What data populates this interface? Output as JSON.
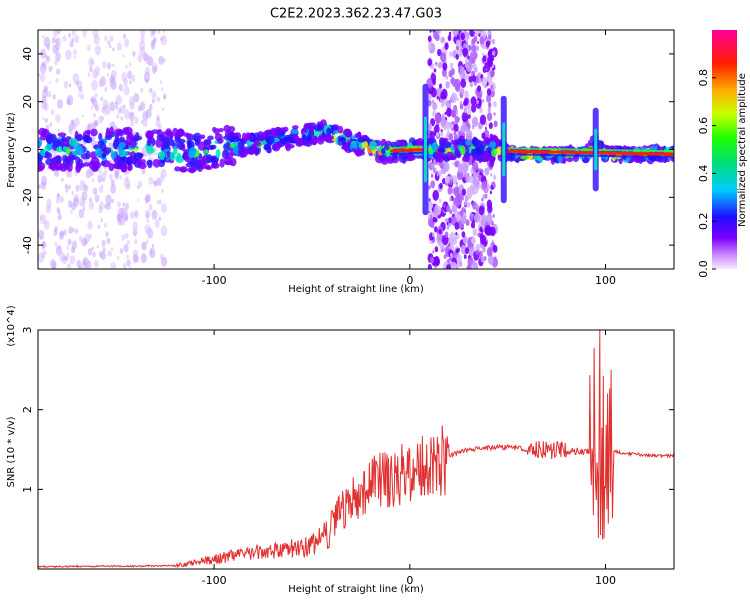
{
  "title": "C2E2.2023.362.23.47.G03",
  "chart_data": [
    {
      "type": "heatmap",
      "xlabel": "Height of straight line (km)",
      "ylabel": "Frequency (Hz)",
      "xlim": [
        -190,
        135
      ],
      "ylim": [
        -50,
        50
      ],
      "xticks": [
        -100,
        0,
        100
      ],
      "yticks": [
        -40,
        -20,
        0,
        20,
        40
      ],
      "colorbar": {
        "label": "Normalized spectral amplitude",
        "range": [
          0,
          1
        ],
        "ticks": [
          0.0,
          0.2,
          0.4,
          0.6,
          0.8
        ],
        "tick_labels": [
          "0.0",
          "0.2",
          "0.4",
          "0.6",
          "0.8"
        ]
      },
      "ridge": [
        {
          "x": -190,
          "y": 0
        },
        {
          "x": -150,
          "y": 0
        },
        {
          "x": -110,
          "y": -1
        },
        {
          "x": -95,
          "y": 1
        },
        {
          "x": -75,
          "y": 3
        },
        {
          "x": -50,
          "y": 7
        },
        {
          "x": -45,
          "y": 8
        },
        {
          "x": -35,
          "y": 5
        },
        {
          "x": -25,
          "y": 2
        },
        {
          "x": -15,
          "y": -1
        },
        {
          "x": 0,
          "y": 0
        },
        {
          "x": 8,
          "y": 0
        },
        {
          "x": 47,
          "y": 0
        },
        {
          "x": 55,
          "y": -2
        },
        {
          "x": 90,
          "y": -2
        },
        {
          "x": 95,
          "y": 3
        },
        {
          "x": 100,
          "y": -2
        },
        {
          "x": 135,
          "y": -2
        }
      ],
      "broadband_bands": [
        [
          -190,
          -125
        ],
        [
          10,
          44
        ]
      ],
      "spikes": [
        8,
        48,
        95
      ]
    },
    {
      "type": "line",
      "xlabel": "Height of straight line (km)",
      "ylabel": "SNR (10 * v/v)",
      "y_multiplier": "(x10^4)",
      "xlim": [
        -190,
        135
      ],
      "ylim": [
        0,
        3
      ],
      "xticks": [
        -100,
        0,
        100
      ],
      "yticks": [
        1,
        2,
        3
      ],
      "series": [
        {
          "color": "#e03030",
          "envelope": [
            {
              "x": -190,
              "y": 0.03
            },
            {
              "x": -120,
              "y": 0.04
            },
            {
              "x": -110,
              "y": 0.08
            },
            {
              "x": -95,
              "y": 0.15
            },
            {
              "x": -80,
              "y": 0.2
            },
            {
              "x": -70,
              "y": 0.25
            },
            {
              "x": -60,
              "y": 0.25
            },
            {
              "x": -50,
              "y": 0.3
            },
            {
              "x": -40,
              "y": 0.55
            },
            {
              "x": -30,
              "y": 0.9
            },
            {
              "x": -20,
              "y": 1.05
            },
            {
              "x": -10,
              "y": 1.15
            },
            {
              "x": 0,
              "y": 1.2
            },
            {
              "x": 10,
              "y": 1.3
            },
            {
              "x": 20,
              "y": 1.42
            },
            {
              "x": 30,
              "y": 1.5
            },
            {
              "x": 40,
              "y": 1.52
            },
            {
              "x": 50,
              "y": 1.53
            },
            {
              "x": 60,
              "y": 1.5
            },
            {
              "x": 70,
              "y": 1.5
            },
            {
              "x": 80,
              "y": 1.48
            },
            {
              "x": 90,
              "y": 1.48
            },
            {
              "x": 95,
              "y": 1.5
            },
            {
              "x": 100,
              "y": 1.5
            },
            {
              "x": 110,
              "y": 1.45
            },
            {
              "x": 120,
              "y": 1.43
            },
            {
              "x": 135,
              "y": 1.42
            }
          ],
          "peak": {
            "x": 97,
            "y": 3.0
          }
        }
      ]
    }
  ]
}
